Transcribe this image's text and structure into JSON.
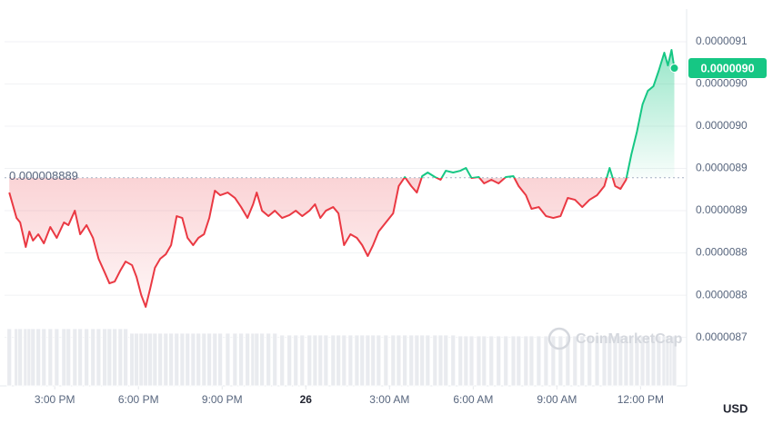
{
  "chart_data": {
    "type": "line",
    "x": [
      13.37,
      13.63,
      13.76,
      13.96,
      14.09,
      14.22,
      14.41,
      14.61,
      14.84,
      15.07,
      15.33,
      15.49,
      15.72,
      15.91,
      16.14,
      16.37,
      16.57,
      16.79,
      16.96,
      17.15,
      17.35,
      17.54,
      17.77,
      17.93,
      18.1,
      18.26,
      18.42,
      18.59,
      18.78,
      18.98,
      19.17,
      19.37,
      19.57,
      19.76,
      19.96,
      20.15,
      20.35,
      20.54,
      20.74,
      20.93,
      21.2,
      21.46,
      21.68,
      21.91,
      22.11,
      22.24,
      22.43,
      22.66,
      22.89,
      23.15,
      23.41,
      23.64,
      23.87,
      24.13,
      24.33,
      24.52,
      24.72,
      24.98,
      25.17,
      25.37,
      25.6,
      25.83,
      26.02,
      26.22,
      26.41,
      26.61,
      26.87,
      27.13,
      27.33,
      27.55,
      27.78,
      27.98,
      28.17,
      28.37,
      28.63,
      28.83,
      29.02,
      29.28,
      29.54,
      29.74,
      29.94,
      30.2,
      30.39,
      30.65,
      30.91,
      31.17,
      31.44,
      31.63,
      31.89,
      32.09,
      32.35,
      32.61,
      32.87,
      33.13,
      33.39,
      33.65,
      33.91,
      34.17,
      34.44,
      34.7,
      34.89,
      35.09,
      35.28,
      35.48,
      35.67,
      35.87,
      36.07,
      36.26,
      36.46,
      36.65,
      36.85,
      36.98,
      37.11,
      37.21
    ],
    "values": [
      8.8715e-06,
      8.8414e-06,
      8.8361e-06,
      8.807e-06,
      8.8253e-06,
      8.8146e-06,
      8.8221e-06,
      8.8113e-06,
      8.8307e-06,
      8.8178e-06,
      8.8361e-06,
      8.8329e-06,
      8.85e-06,
      8.8221e-06,
      8.8329e-06,
      8.8178e-06,
      8.7931e-06,
      8.7769e-06,
      8.764e-06,
      8.7662e-06,
      8.7791e-06,
      8.7898e-06,
      8.7855e-06,
      8.7716e-06,
      8.7501e-06,
      8.7361e-06,
      8.7576e-06,
      8.7823e-06,
      8.7931e-06,
      8.7984e-06,
      8.8092e-06,
      8.8436e-06,
      8.8414e-06,
      8.8178e-06,
      8.8092e-06,
      8.8178e-06,
      8.8221e-06,
      8.8414e-06,
      8.8737e-06,
      8.8683e-06,
      8.8715e-06,
      8.8651e-06,
      8.8543e-06,
      8.8414e-06,
      8.8576e-06,
      8.8715e-06,
      8.85e-06,
      8.8436e-06,
      8.85e-06,
      8.8414e-06,
      8.8447e-06,
      8.85e-06,
      8.8436e-06,
      8.85e-06,
      8.8576e-06,
      8.8414e-06,
      8.85e-06,
      8.8543e-06,
      8.8468e-06,
      8.8092e-06,
      8.8221e-06,
      8.8178e-06,
      8.8092e-06,
      8.7963e-06,
      8.8092e-06,
      8.8253e-06,
      8.8361e-06,
      8.8468e-06,
      8.8791e-06,
      8.8898e-06,
      8.8791e-06,
      8.8715e-06,
      8.8909e-06,
      8.8952e-06,
      8.8898e-06,
      8.8866e-06,
      8.8973e-06,
      8.8952e-06,
      8.8973e-06,
      8.9006e-06,
      8.8887e-06,
      8.8898e-06,
      8.8823e-06,
      8.8866e-06,
      8.8823e-06,
      8.8898e-06,
      8.8909e-06,
      8.8791e-06,
      8.8683e-06,
      8.8522e-06,
      8.8543e-06,
      8.8436e-06,
      8.8414e-06,
      8.8436e-06,
      8.8651e-06,
      8.8629e-06,
      8.8543e-06,
      8.8629e-06,
      8.8683e-06,
      8.8791e-06,
      8.9006e-06,
      8.8791e-06,
      8.8758e-06,
      8.8866e-06,
      8.9167e-06,
      8.9436e-06,
      8.9758e-06,
      8.9919e-06,
      8.9973e-06,
      9.0156e-06,
      9.0371e-06,
      9.022e-06,
      9.0403e-06,
      9.0188e-06
    ],
    "volume": [
      63,
      63,
      63,
      63,
      63,
      63,
      63,
      63,
      63,
      63,
      63,
      63,
      63,
      63,
      63,
      63,
      63,
      63,
      63,
      63,
      63,
      63,
      58,
      58,
      58,
      58,
      58,
      58,
      58,
      58,
      58,
      58,
      58,
      58,
      58,
      58,
      58,
      58,
      58,
      58,
      58,
      58,
      58,
      58,
      58,
      58,
      58,
      58,
      58,
      56,
      56,
      56,
      56,
      56,
      56,
      56,
      56,
      56,
      56,
      56,
      56,
      56,
      56,
      56,
      56,
      56,
      56,
      56,
      56,
      56,
      56,
      56,
      56,
      56,
      56,
      56,
      56,
      56,
      55,
      55,
      55,
      55,
      55,
      55,
      55,
      55,
      55,
      55,
      55,
      55,
      55,
      55,
      55,
      55,
      55,
      55,
      55,
      55,
      55,
      55,
      55,
      55,
      55,
      55,
      55,
      55,
      55,
      55,
      55,
      55,
      55,
      55,
      55,
      55
    ],
    "volume_ylim": [
      0,
      100
    ],
    "up_color": "#16c784",
    "down_color": "#ea3943",
    "baseline": 8.889e-06,
    "baseline_label": "0.000008889",
    "current_price": 9.0188e-06,
    "current_price_label": "0.0000090",
    "currency": "USD",
    "watermark": "CoinMarketCap",
    "xlim": [
      13.2,
      37.65
    ],
    "xticks": [
      {
        "value": 15,
        "label": "3:00 PM"
      },
      {
        "value": 18,
        "label": "6:00 PM"
      },
      {
        "value": 21,
        "label": "9:00 PM"
      },
      {
        "value": 24,
        "label": "26"
      },
      {
        "value": 27,
        "label": "3:00 AM"
      },
      {
        "value": 30,
        "label": "6:00 AM"
      },
      {
        "value": 33,
        "label": "9:00 AM"
      },
      {
        "value": 36,
        "label": "12:00 PM"
      }
    ],
    "ylim": [
      8.6426e-06,
      9.0887e-06
    ],
    "yticks": [
      {
        "value": 9.05e-06,
        "label": "0.0000091"
      },
      {
        "value": 9e-06,
        "label": "0.0000090"
      },
      {
        "value": 8.95e-06,
        "label": "0.0000090"
      },
      {
        "value": 8.9e-06,
        "label": "0.0000089"
      },
      {
        "value": 8.85e-06,
        "label": "0.0000089"
      },
      {
        "value": 8.8e-06,
        "label": "0.0000088"
      },
      {
        "value": 8.75e-06,
        "label": "0.0000088"
      },
      {
        "value": 8.7e-06,
        "label": "0.0000087"
      }
    ],
    "grid": true
  }
}
